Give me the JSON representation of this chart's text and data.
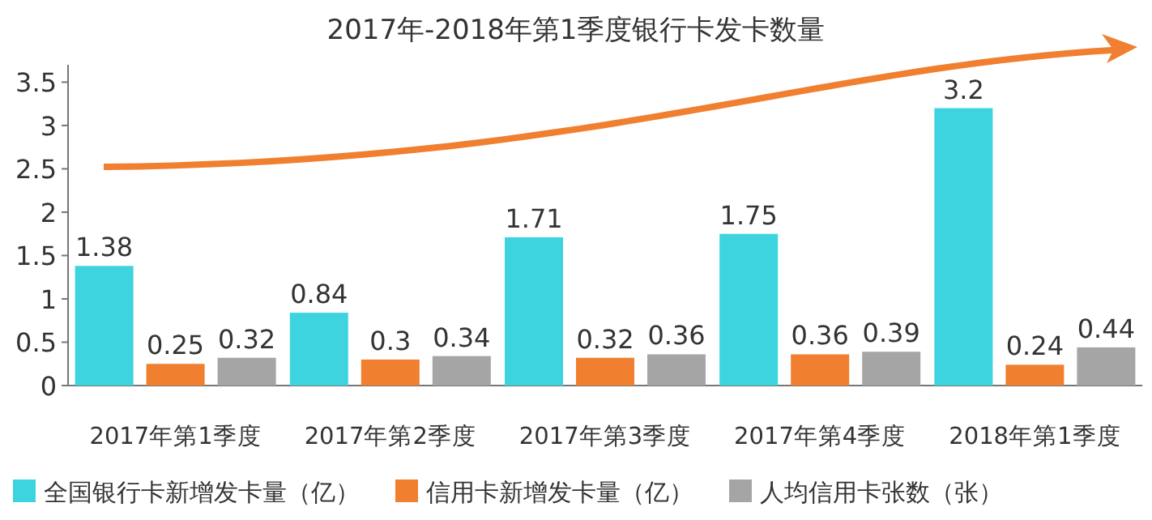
{
  "chart_data": {
    "type": "bar",
    "title": "2017年-2018年第1季度银行卡发卡数量",
    "categories": [
      "2017年第1季度",
      "2017年第2季度",
      "2017年第3季度",
      "2017年第4季度",
      "2018年第1季度"
    ],
    "series": [
      {
        "name": "全国银行卡新增发卡量（亿）",
        "color": "#3dd3df",
        "values": [
          1.38,
          0.84,
          1.71,
          1.75,
          3.2
        ]
      },
      {
        "name": "信用卡新增发卡量（亿）",
        "color": "#f07f2f",
        "values": [
          0.25,
          0.3,
          0.32,
          0.36,
          0.24
        ]
      },
      {
        "name": "人均信用卡张数（张）",
        "color": "#a5a5a5",
        "values": [
          0.32,
          0.34,
          0.36,
          0.39,
          0.44
        ]
      }
    ],
    "ylim": [
      0,
      3.7
    ],
    "yticks": [
      0,
      0.5,
      1,
      1.5,
      2,
      2.5,
      3,
      3.5
    ],
    "data_labels": true,
    "legend": "bottom",
    "grid": false
  }
}
